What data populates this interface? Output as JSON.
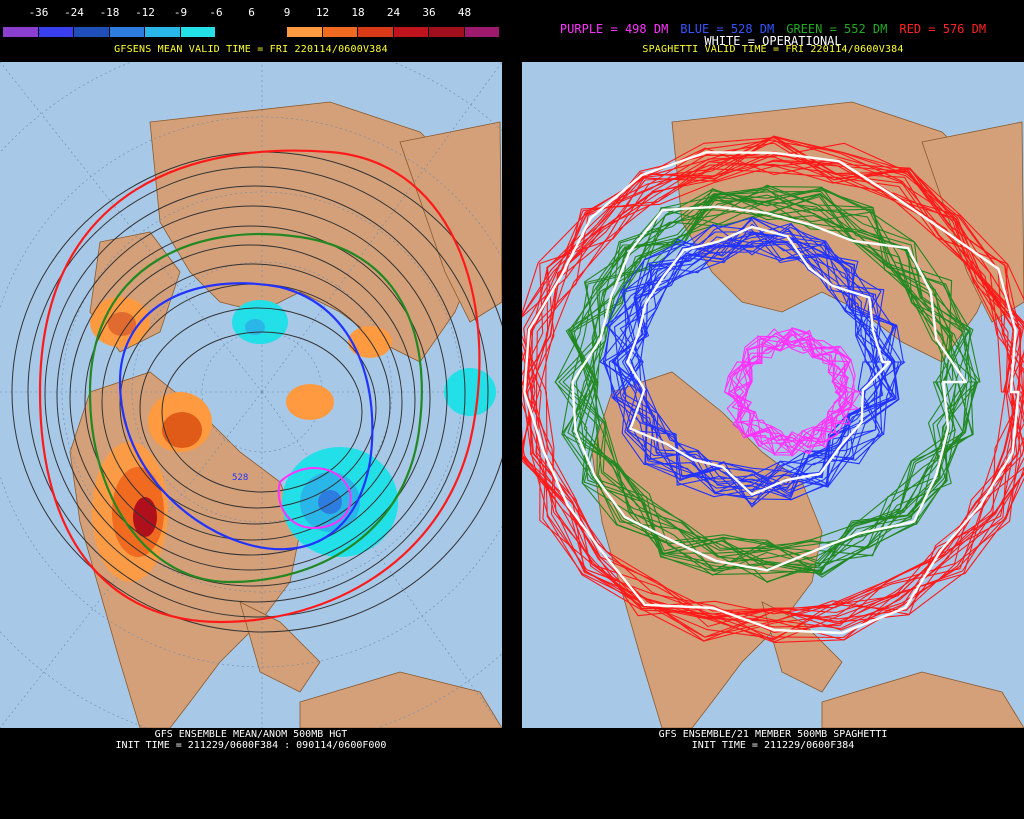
{
  "left": {
    "legend_ticks": [
      "-36",
      "-24",
      "-18",
      "-12",
      "-9",
      "-6",
      "6",
      "9",
      "12",
      "18",
      "24",
      "36",
      "48"
    ],
    "legend_colors": [
      "#8a3fd1",
      "#3a3ff0",
      "#1f4fb8",
      "#2d7de0",
      "#2ab6e8",
      "#22dfe8",
      "#000000",
      "#000000",
      "#ff9a40",
      "#f06a20",
      "#d83a18",
      "#c0141c",
      "#a0101c",
      "#9e1a6c"
    ],
    "title": "GFSENS MEAN VALID TIME = FRI 220114/0600V384",
    "contour_label": "528",
    "footer_line1": "GFS ENSEMBLE MEAN/ANOM 500MB HGT",
    "footer_line2": "INIT TIME = 211229/0600F384 : 090114/0600F000"
  },
  "right": {
    "legend_items": [
      {
        "label": "PURPLE = 498 DM",
        "color": "#ff33ff"
      },
      {
        "label": "BLUE = 528 DM",
        "color": "#3355ff"
      },
      {
        "label": "GREEN = 552 DM",
        "color": "#22aa22"
      },
      {
        "label": "RED = 576 DM",
        "color": "#ff2222"
      }
    ],
    "white_label": "WHITE = OPERATIONAL",
    "title": "SPAGHETTI VALID TIME = FRI 220114/0600V384",
    "footer_line1": "GFS ENSEMBLE/21 MEMBER 500MB SPAGHETTI",
    "footer_line2": "INIT TIME = 211229/0600F384"
  },
  "colors": {
    "ocean": "#a8c8e8",
    "land": "#d4a07a",
    "title_yellow": "#ffff33",
    "purple": "#ff33ff",
    "blue": "#2233ff",
    "green": "#228822",
    "red": "#ff1a1a",
    "white": "#ffffff"
  }
}
